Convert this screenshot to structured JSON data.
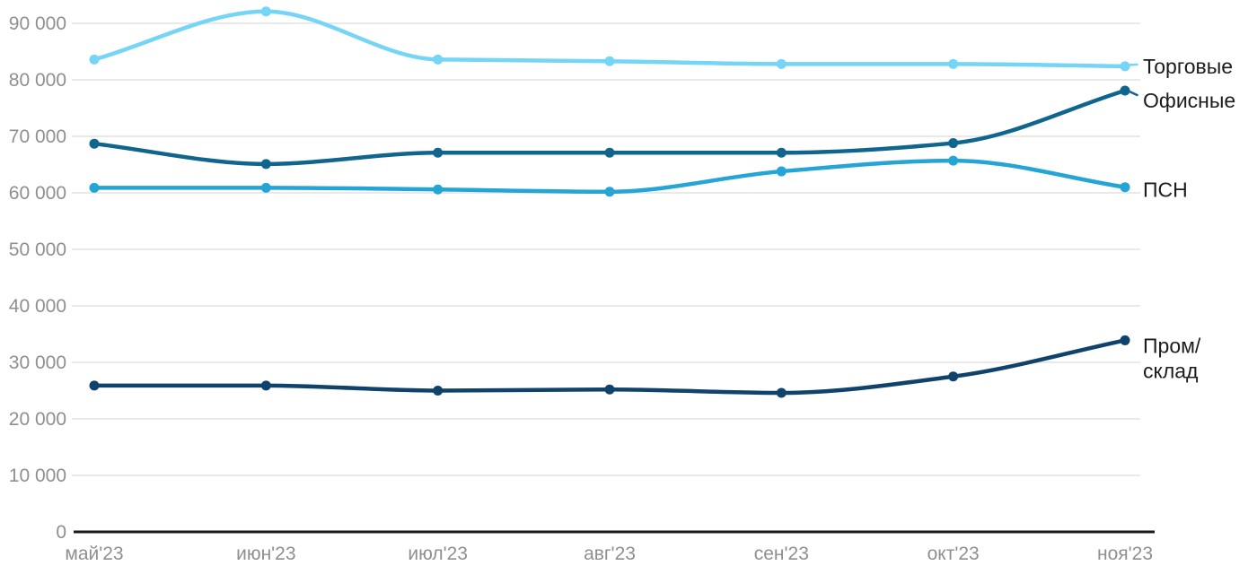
{
  "chart_data": {
    "type": "line",
    "title": "",
    "xlabel": "",
    "ylabel": "",
    "x_categories": [
      "май'23",
      "июн'23",
      "июл'23",
      "авг'23",
      "сен'23",
      "окт'23",
      "ноя'23"
    ],
    "series": [
      {
        "id": "torgovye",
        "name": "Торговые",
        "label_lines": [
          "Торговые"
        ],
        "color": "#75d5f7",
        "values": [
          83600,
          92100,
          83600,
          83300,
          82800,
          82800,
          82400
        ]
      },
      {
        "id": "ofisnye",
        "name": "Офисные",
        "label_lines": [
          "Офисные"
        ],
        "color": "#10658e",
        "values": [
          68700,
          65100,
          67100,
          67100,
          67100,
          68800,
          78100
        ]
      },
      {
        "id": "psn",
        "name": "ПСН",
        "label_lines": [
          "ПСН"
        ],
        "color": "#25a5d6",
        "values": [
          60900,
          60900,
          60600,
          60200,
          63800,
          65700,
          61000
        ]
      },
      {
        "id": "prom-sklad",
        "name": "Пром/склад",
        "label_lines": [
          "Пром/",
          "склад"
        ],
        "color": "#0f436b",
        "values": [
          25900,
          25900,
          25000,
          25200,
          24600,
          27500,
          33900
        ]
      }
    ],
    "y_ticks": [
      {
        "value": 0,
        "label": "0"
      },
      {
        "value": 10000,
        "label": "10 000"
      },
      {
        "value": 20000,
        "label": "20 000"
      },
      {
        "value": 30000,
        "label": "30 000"
      },
      {
        "value": 40000,
        "label": "40 000"
      },
      {
        "value": 50000,
        "label": "50 000"
      },
      {
        "value": 60000,
        "label": "60 000"
      },
      {
        "value": 70000,
        "label": "70 000"
      },
      {
        "value": 80000,
        "label": "80 000"
      },
      {
        "value": 90000,
        "label": "90 000"
      }
    ],
    "ylim": [
      0,
      94100
    ],
    "grid": true,
    "legend_position": "right-of-last-point",
    "colors": {
      "axis": "#1a1a1a",
      "grid": "#e9e9e9",
      "tick_label": "#8f8f8f",
      "legend_text": "#1c1c1c",
      "background": "#ffffff"
    }
  }
}
